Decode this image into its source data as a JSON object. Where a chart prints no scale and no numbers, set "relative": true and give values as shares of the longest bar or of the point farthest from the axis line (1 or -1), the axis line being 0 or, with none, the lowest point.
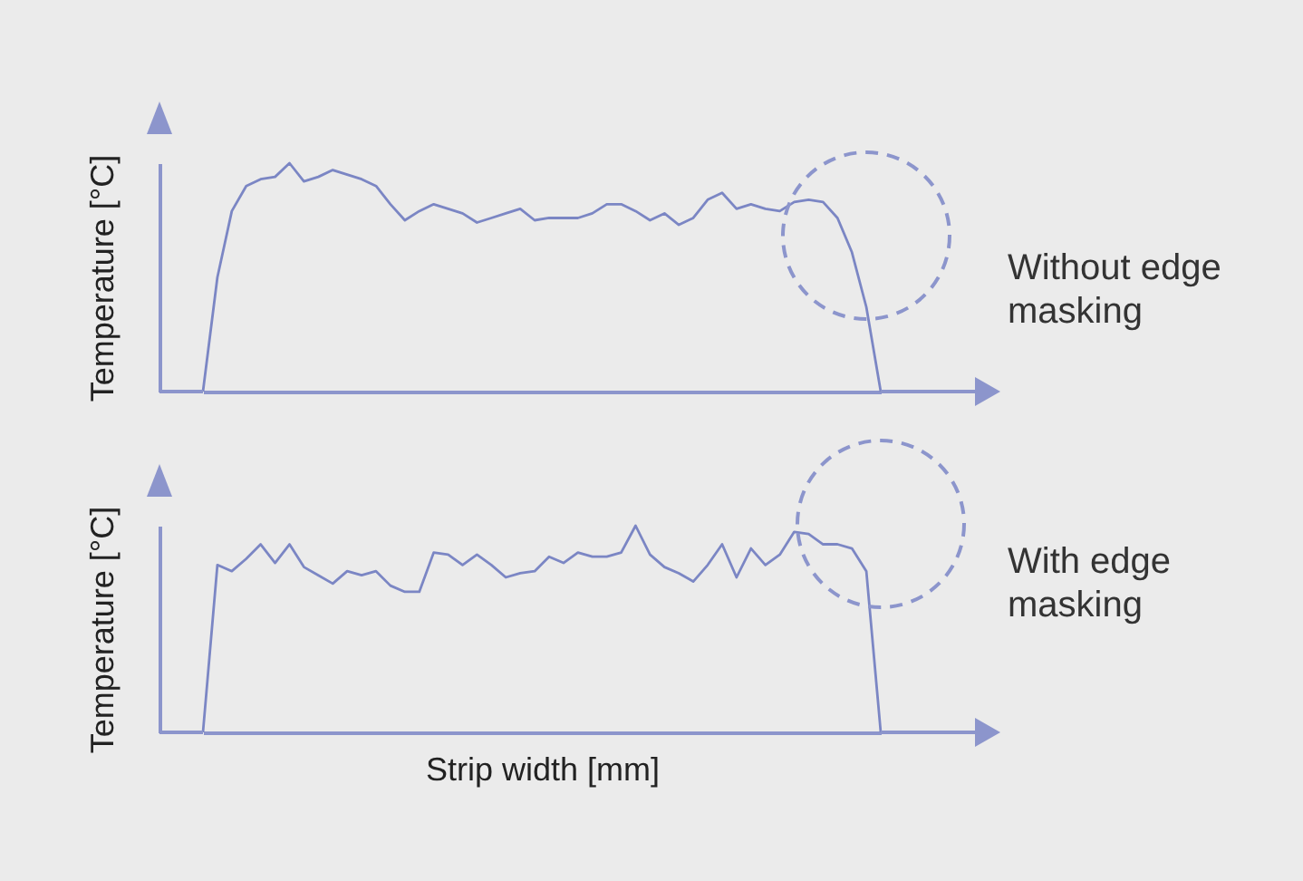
{
  "chart_data": [
    {
      "type": "line",
      "relative": true,
      "ylabel": "Temperature [°C]",
      "annotations": [
        "Without edge masking"
      ],
      "categories": [
        null,
        null,
        null,
        null,
        null,
        null,
        null,
        null,
        null,
        null,
        null,
        null,
        null,
        null,
        null,
        null,
        null,
        null,
        null,
        null,
        null,
        null,
        null,
        null,
        null,
        null,
        null,
        null,
        null,
        null,
        null,
        null,
        null,
        null,
        null,
        null,
        null,
        null,
        null,
        null,
        null,
        null,
        null,
        null,
        null,
        null,
        null,
        null
      ],
      "series": [
        {
          "color": "#7b86c4",
          "values": [
            0,
            0.5,
            0.79,
            0.9,
            0.93,
            0.94,
            1,
            0.92,
            0.94,
            0.97,
            0.95,
            0.93,
            0.9,
            0.82,
            0.75,
            0.79,
            0.82,
            0.8,
            0.78,
            0.74,
            0.76,
            0.78,
            0.8,
            0.75,
            0.76,
            0.76,
            0.76,
            0.78,
            0.82,
            0.82,
            0.79,
            0.75,
            0.78,
            0.73,
            0.76,
            0.84,
            0.87,
            0.8,
            0.82,
            0.8,
            0.79,
            0.83,
            0.84,
            0.83,
            0.76,
            0.61,
            0.37,
            0
          ]
        }
      ]
    },
    {
      "type": "line",
      "relative": true,
      "ylabel": "Temperature [°C]",
      "xlabel": "Strip width [mm]",
      "annotations": [
        "With edge masking"
      ],
      "categories": [
        null,
        null,
        null,
        null,
        null,
        null,
        null,
        null,
        null,
        null,
        null,
        null,
        null,
        null,
        null,
        null,
        null,
        null,
        null,
        null,
        null,
        null,
        null,
        null,
        null,
        null,
        null,
        null,
        null,
        null,
        null,
        null,
        null,
        null,
        null,
        null,
        null,
        null,
        null,
        null,
        null,
        null,
        null,
        null,
        null,
        null,
        null,
        null
      ],
      "series": [
        {
          "color": "#7b86c4",
          "values": [
            0,
            0.81,
            0.78,
            0.84,
            0.91,
            0.82,
            0.91,
            0.8,
            0.76,
            0.72,
            0.78,
            0.76,
            0.78,
            0.71,
            0.68,
            0.68,
            0.87,
            0.86,
            0.81,
            0.86,
            0.81,
            0.75,
            0.77,
            0.78,
            0.85,
            0.82,
            0.87,
            0.85,
            0.85,
            0.87,
            1,
            0.86,
            0.8,
            0.77,
            0.73,
            0.81,
            0.91,
            0.75,
            0.89,
            0.81,
            0.86,
            0.97,
            0.96,
            0.91,
            0.91,
            0.89,
            0.78,
            0
          ]
        }
      ]
    }
  ]
}
